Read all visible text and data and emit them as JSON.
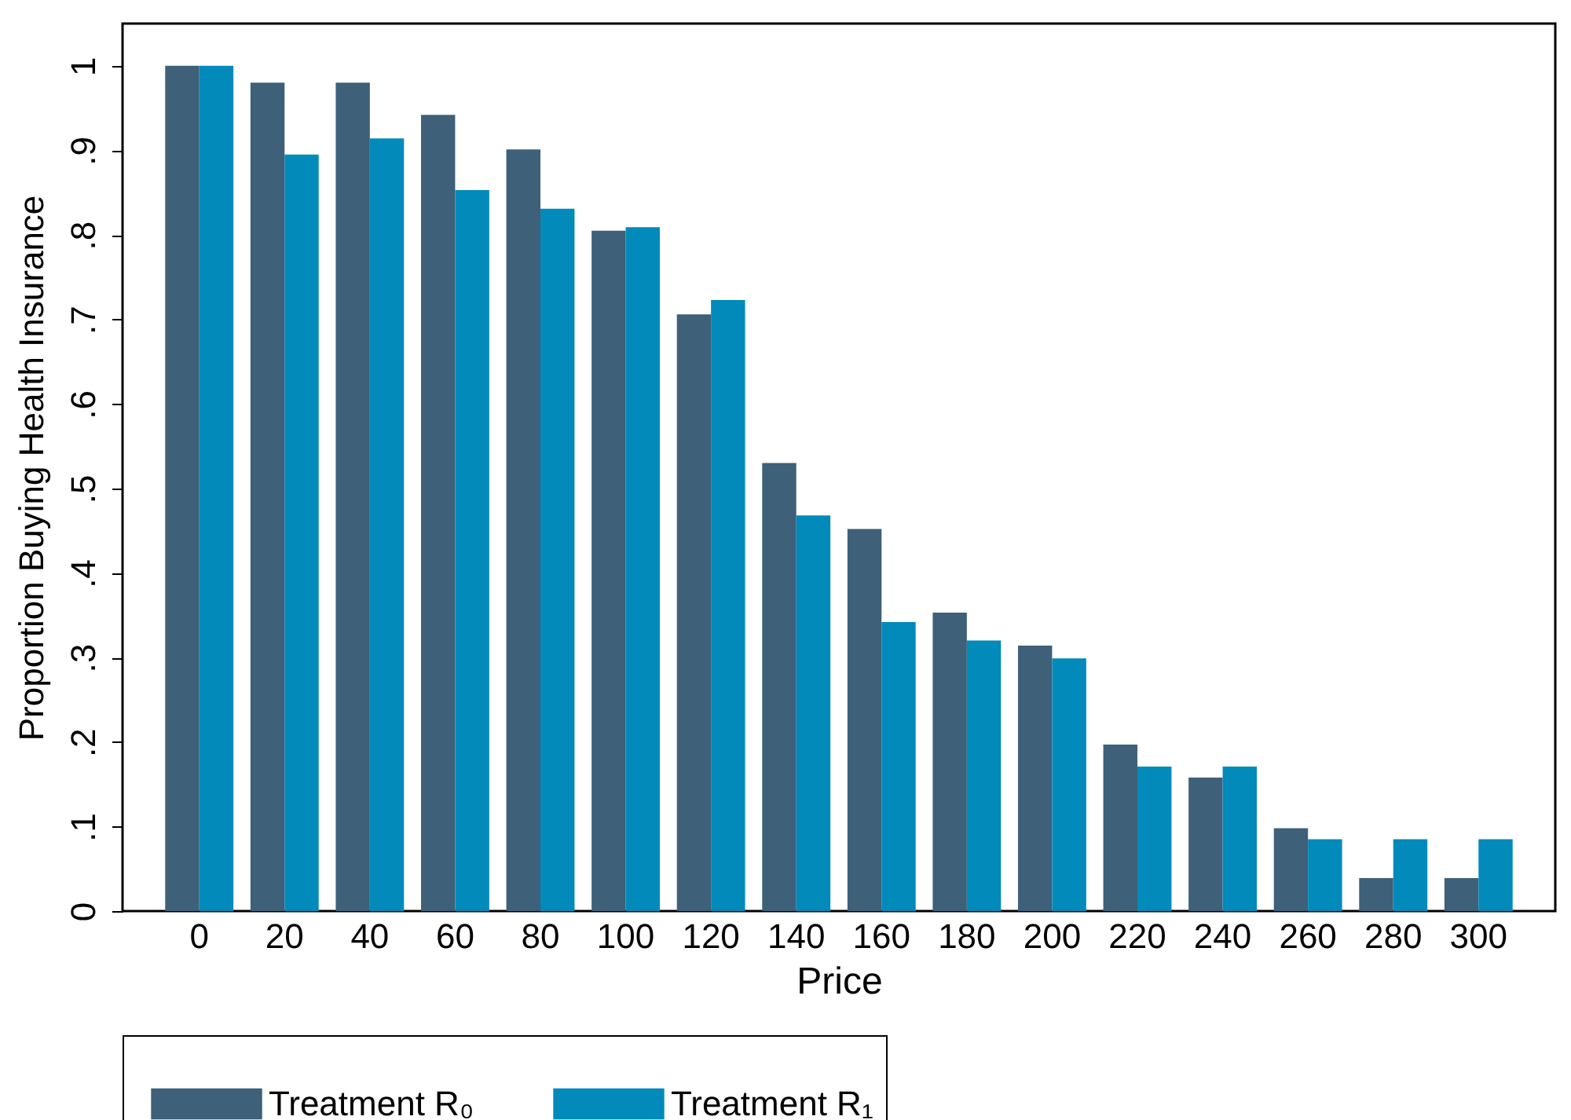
{
  "chart_data": {
    "type": "bar",
    "xlabel": "Price",
    "ylabel": "Proportion Buying Health Insurance",
    "categories": [
      "0",
      "20",
      "40",
      "60",
      "80",
      "100",
      "120",
      "140",
      "160",
      "180",
      "200",
      "220",
      "240",
      "260",
      "280",
      "300"
    ],
    "series": [
      {
        "name": "Treatment R₀",
        "color": "#3e6079",
        "values": [
          1.0,
          0.98,
          0.98,
          0.942,
          0.901,
          0.805,
          0.706,
          0.53,
          0.452,
          0.353,
          0.314,
          0.197,
          0.158,
          0.098,
          0.039,
          0.039
        ]
      },
      {
        "name": "Treatment R₁",
        "color": "#028abb",
        "values": [
          1.0,
          0.895,
          0.914,
          0.853,
          0.831,
          0.809,
          0.723,
          0.468,
          0.342,
          0.32,
          0.299,
          0.171,
          0.171,
          0.085,
          0.085,
          0.085
        ]
      }
    ],
    "ylim": [
      0,
      1.05
    ],
    "yticks": [
      0,
      {
        "value": 0.1,
        "label": ".1"
      },
      {
        "value": 0.2,
        "label": ".2"
      },
      {
        "value": 0.3,
        "label": ".3"
      },
      {
        "value": 0.4,
        "label": ".4"
      },
      {
        "value": 0.5,
        "label": ".5"
      },
      {
        "value": 0.6,
        "label": ".6"
      },
      {
        "value": 0.7,
        "label": ".7"
      },
      {
        "value": 0.8,
        "label": ".8"
      },
      {
        "value": 0.9,
        "label": ".9"
      },
      1
    ],
    "legend": "bottom"
  }
}
